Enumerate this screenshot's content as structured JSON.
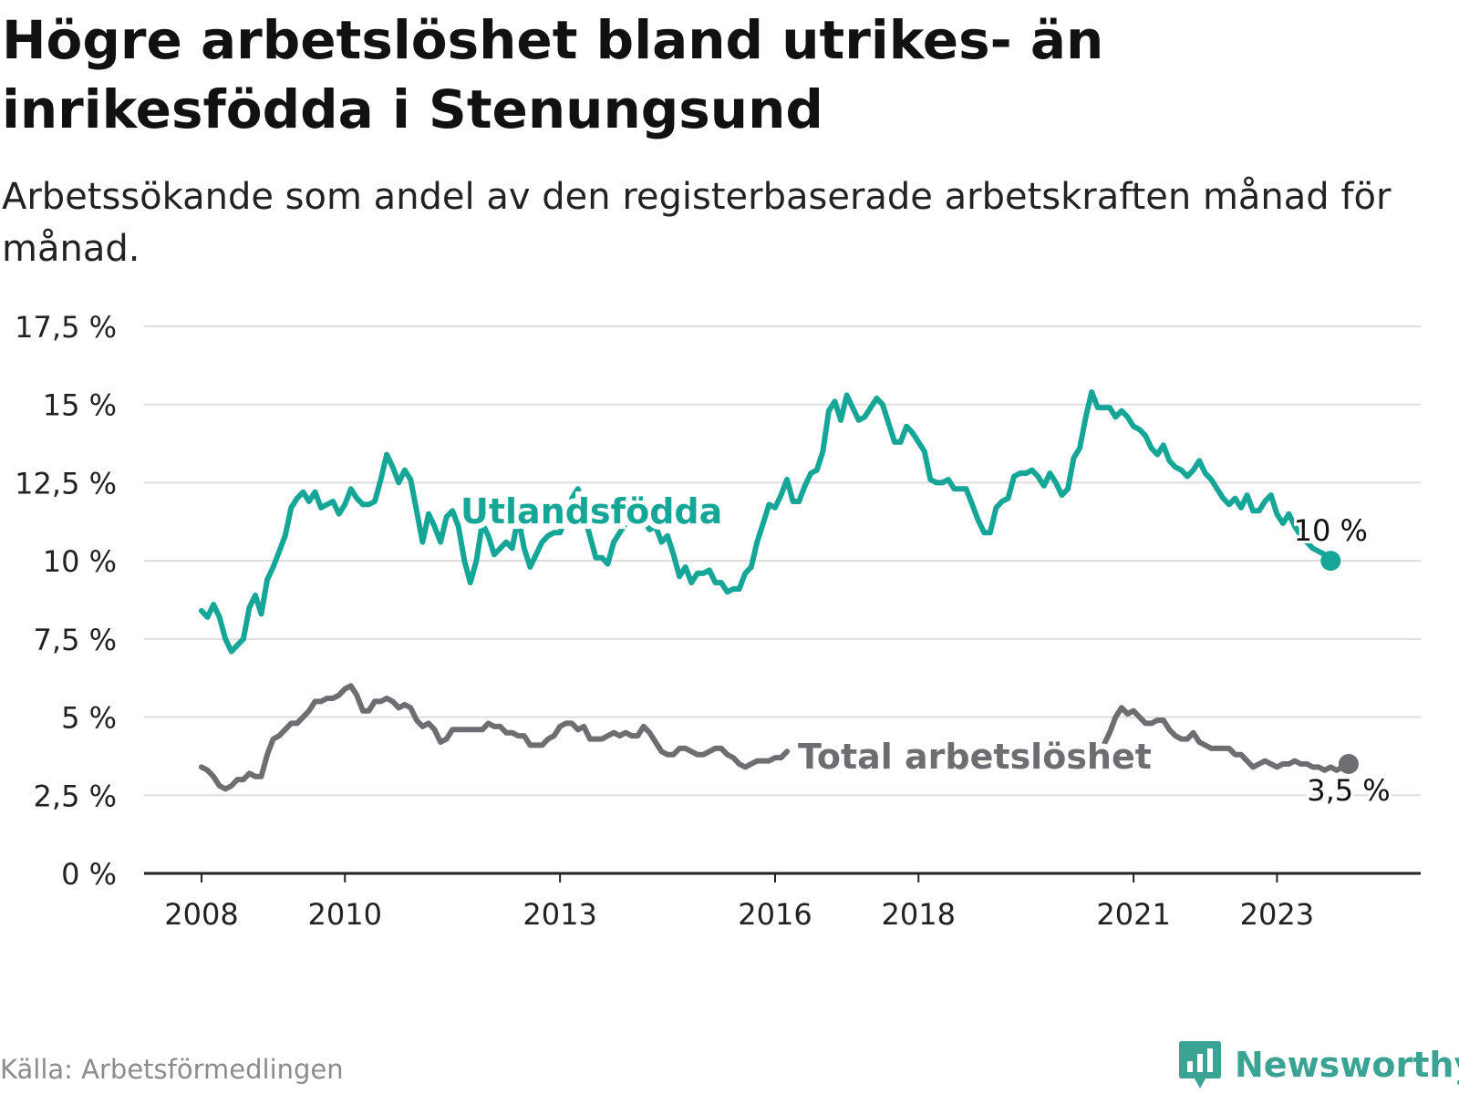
{
  "title": "Högre arbetslöshet bland utrikes- än inrikesfödda i Stenungsund",
  "subtitle": "Arbetssökande som andel av den registerbaserade arbetskraften månad för månad.",
  "source": "Källa: Arbetsförmedlingen",
  "brand": "Newsworthy",
  "colors": {
    "foreign": "#16a697",
    "total": "#6e6e72",
    "grid": "#dddddd",
    "axis": "#222222"
  },
  "chart_data": {
    "type": "line",
    "title": "Högre arbetslöshet bland utrikes- än inrikesfödda i Stenungsund",
    "xlabel": "",
    "ylabel": "",
    "x_range": [
      2008.0,
      2024.0
    ],
    "ylim": [
      0,
      17.5
    ],
    "y_ticks": [
      0,
      2.5,
      5,
      7.5,
      10,
      12.5,
      15,
      17.5
    ],
    "y_tick_labels": [
      "0 %",
      "2,5 %",
      "5 %",
      "7,5 %",
      "10 %",
      "12,5 %",
      "15 %",
      "17,5 %"
    ],
    "x_ticks": [
      2008,
      2010,
      2013,
      2016,
      2018,
      2021,
      2023
    ],
    "x_tick_labels": [
      "2008",
      "2010",
      "2013",
      "2016",
      "2018",
      "2021",
      "2023"
    ],
    "series": [
      {
        "name": "Utlandsfödda",
        "label": "Utlandsfödda",
        "end_label": "10 %",
        "start": 2008.0,
        "step": 0.08333,
        "values": [
          8.4,
          8.2,
          8.6,
          8.2,
          7.5,
          7.1,
          7.3,
          7.5,
          8.5,
          8.9,
          8.3,
          9.4,
          9.8,
          10.3,
          10.8,
          11.7,
          12.0,
          12.2,
          11.9,
          12.2,
          11.7,
          11.8,
          11.9,
          11.5,
          11.8,
          12.3,
          12.0,
          11.8,
          11.8,
          11.9,
          12.6,
          13.4,
          13.0,
          12.5,
          12.9,
          12.6,
          11.6,
          10.6,
          11.5,
          11.1,
          10.6,
          11.4,
          11.6,
          11.1,
          10.0,
          9.3,
          10.0,
          11.2,
          10.8,
          10.2,
          10.4,
          10.6,
          10.4,
          11.4,
          10.4,
          9.8,
          10.2,
          10.6,
          10.8,
          10.9,
          10.9,
          11.4,
          12.0,
          12.3,
          11.5,
          10.8,
          10.1,
          10.1,
          9.9,
          10.6,
          10.9,
          11.2,
          11.6,
          11.8,
          11.3,
          11.0,
          11.1,
          10.6,
          10.8,
          10.2,
          9.5,
          9.8,
          9.3,
          9.6,
          9.6,
          9.7,
          9.3,
          9.3,
          9.0,
          9.1,
          9.1,
          9.6,
          9.8,
          10.6,
          11.2,
          11.8,
          11.7,
          12.1,
          12.6,
          11.9,
          11.9,
          12.4,
          12.8,
          12.9,
          13.5,
          14.8,
          15.1,
          14.5,
          15.3,
          14.9,
          14.5,
          14.6,
          14.9,
          15.2,
          15.0,
          14.4,
          13.8,
          13.8,
          14.3,
          14.1,
          13.8,
          13.5,
          12.6,
          12.5,
          12.5,
          12.6,
          12.3,
          12.3,
          12.3,
          11.8,
          11.3,
          10.9,
          10.9,
          11.7,
          11.9,
          12.0,
          12.7,
          12.8,
          12.8,
          12.9,
          12.7,
          12.4,
          12.8,
          12.5,
          12.1,
          12.3,
          13.3,
          13.6,
          14.6,
          15.4,
          14.9,
          14.9,
          14.9,
          14.6,
          14.8,
          14.6,
          14.3,
          14.2,
          14.0,
          13.6,
          13.4,
          13.7,
          13.2,
          13.0,
          12.9,
          12.7,
          12.9,
          13.2,
          12.8,
          12.6,
          12.3,
          12.0,
          11.8,
          12.0,
          11.7,
          12.1,
          11.6,
          11.6,
          11.9,
          12.1,
          11.5,
          11.2,
          11.5,
          11.1,
          10.8,
          10.6,
          10.4,
          10.3,
          10.2,
          10.0
        ]
      },
      {
        "name": "Total arbetslöshet",
        "label": "Total arbetslöshet",
        "end_label": "3,5 %",
        "start": 2008.0,
        "step": 0.08333,
        "values": [
          3.4,
          3.3,
          3.1,
          2.8,
          2.7,
          2.8,
          3.0,
          3.0,
          3.2,
          3.1,
          3.1,
          3.8,
          4.3,
          4.4,
          4.6,
          4.8,
          4.8,
          5.0,
          5.2,
          5.5,
          5.5,
          5.6,
          5.6,
          5.7,
          5.9,
          6.0,
          5.7,
          5.2,
          5.2,
          5.5,
          5.5,
          5.6,
          5.5,
          5.3,
          5.4,
          5.3,
          4.9,
          4.7,
          4.8,
          4.6,
          4.2,
          4.3,
          4.6,
          4.6,
          4.6,
          4.6,
          4.6,
          4.6,
          4.8,
          4.7,
          4.7,
          4.5,
          4.5,
          4.4,
          4.4,
          4.1,
          4.1,
          4.1,
          4.3,
          4.4,
          4.7,
          4.8,
          4.8,
          4.6,
          4.7,
          4.3,
          4.3,
          4.3,
          4.4,
          4.5,
          4.4,
          4.5,
          4.4,
          4.4,
          4.7,
          4.5,
          4.2,
          3.9,
          3.8,
          3.8,
          4.0,
          4.0,
          3.9,
          3.8,
          3.8,
          3.9,
          4.0,
          4.0,
          3.8,
          3.7,
          3.5,
          3.4,
          3.5,
          3.6,
          3.6,
          3.6,
          3.7,
          3.7,
          3.9,
          null,
          null,
          null,
          null,
          null,
          null,
          null,
          null,
          null,
          null,
          null,
          null,
          null,
          null,
          null,
          null,
          null,
          null,
          null,
          null,
          null,
          null,
          null,
          null,
          null,
          null,
          null,
          null,
          null,
          null,
          null,
          null,
          null,
          null,
          null,
          null,
          null,
          null,
          null,
          null,
          null,
          null,
          null,
          null,
          null,
          null,
          null,
          null,
          null,
          null,
          null,
          null,
          4.1,
          4.5,
          5.0,
          5.3,
          5.1,
          5.2,
          5.0,
          4.8,
          4.8,
          4.9,
          4.9,
          4.6,
          4.4,
          4.3,
          4.3,
          4.5,
          4.2,
          4.1,
          4.0,
          4.0,
          4.0,
          4.0,
          3.8,
          3.8,
          3.6,
          3.4,
          3.5,
          3.6,
          3.5,
          3.4,
          3.5,
          3.5,
          3.6,
          3.5,
          3.5,
          3.4,
          3.4,
          3.3,
          3.4,
          3.3,
          3.4,
          3.5
        ]
      }
    ],
    "legend": "inline labels"
  }
}
